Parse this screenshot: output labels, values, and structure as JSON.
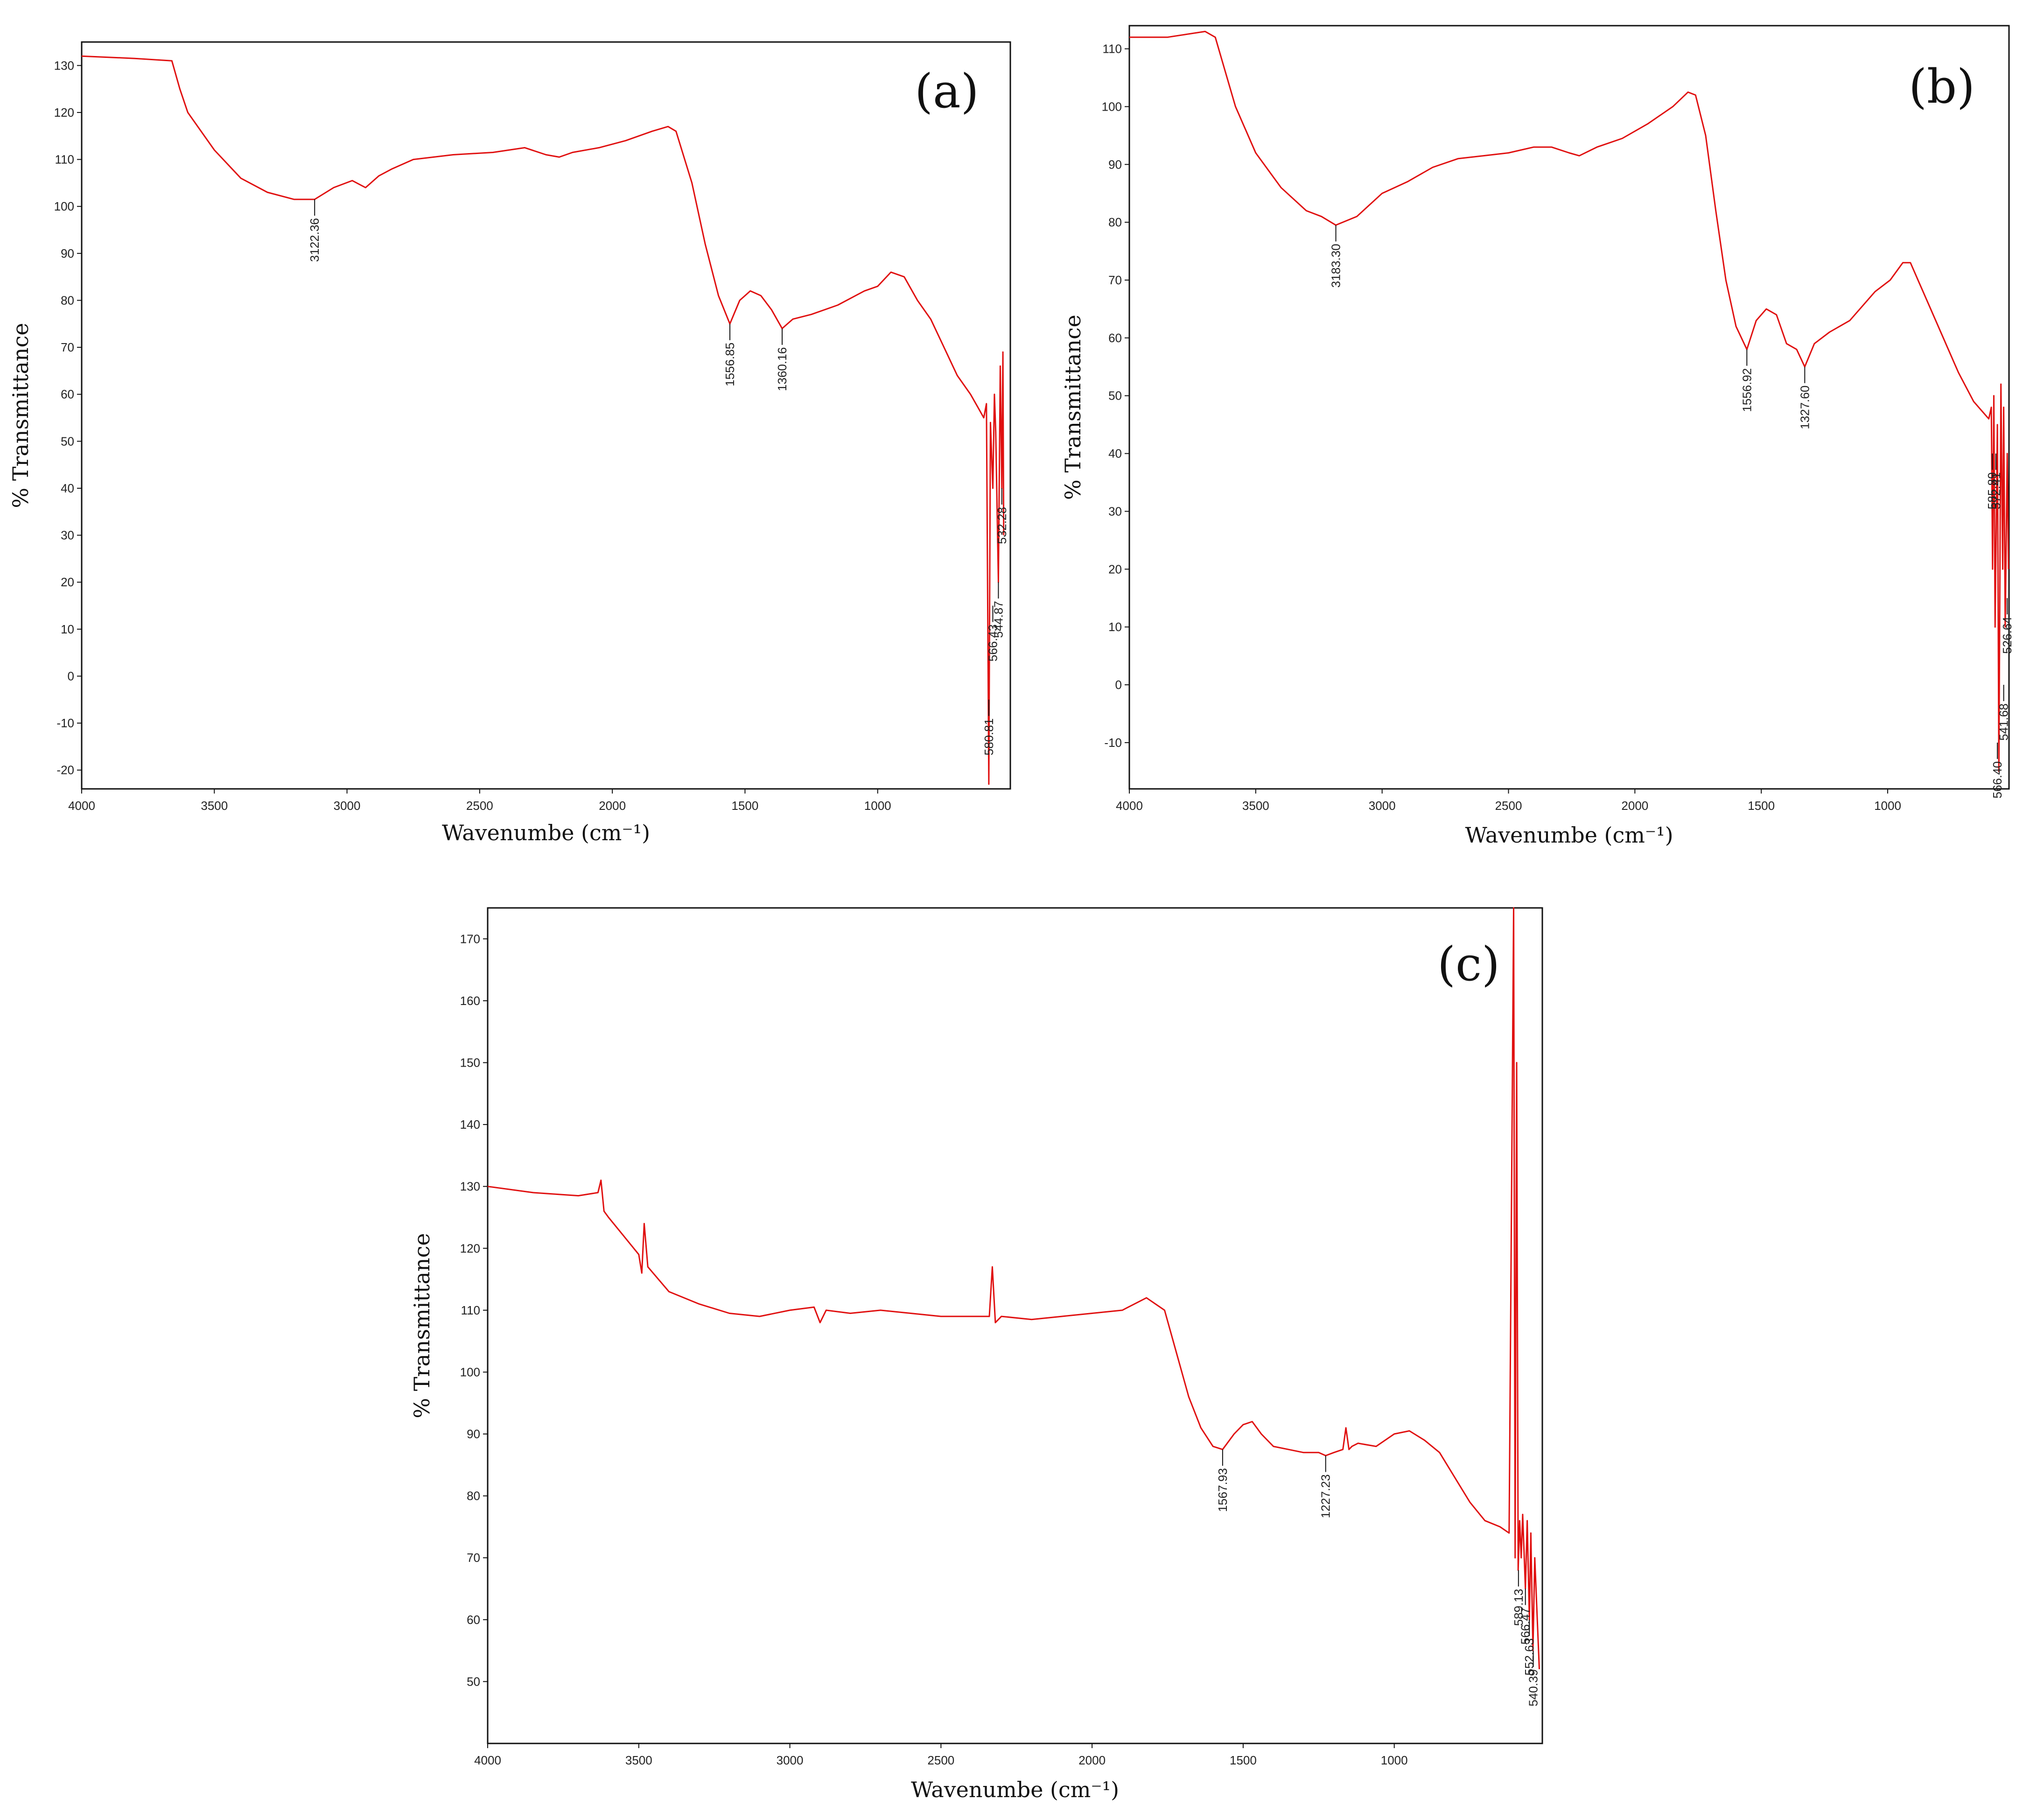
{
  "chart_data": [
    {
      "type": "line",
      "panel_label": "(a)",
      "xlabel": "Wavenumbe (cm⁻¹)",
      "ylabel": "% Transmittance",
      "xlim": [
        4000,
        500
      ],
      "ylim": [
        -24,
        135
      ],
      "x_ticks": [
        "4000",
        "3500",
        "3000",
        "2500",
        "2000",
        "1500",
        "1000"
      ],
      "x_tick_values": [
        4000,
        3500,
        3000,
        2500,
        2000,
        1500,
        1000
      ],
      "y_ticks": [
        "-20",
        "-10",
        "0",
        "10",
        "20",
        "30",
        "40",
        "50",
        "60",
        "70",
        "80",
        "90",
        "100",
        "110",
        "120",
        "130"
      ],
      "y_tick_values": [
        -20,
        -10,
        0,
        10,
        20,
        30,
        40,
        50,
        60,
        70,
        80,
        90,
        100,
        110,
        120,
        130
      ],
      "line_color": "#e01010",
      "series": [
        {
          "x": [
            4000,
            3800,
            3660,
            3630,
            3600,
            3500,
            3400,
            3300,
            3200,
            3122,
            3050,
            2980,
            2930,
            2880,
            2830,
            2750,
            2600,
            2450,
            2330,
            2250,
            2200,
            2150,
            2050,
            1950,
            1850,
            1790,
            1760,
            1700,
            1650,
            1600,
            1557,
            1520,
            1480,
            1440,
            1400,
            1360,
            1320,
            1250,
            1150,
            1050,
            1000,
            950,
            900,
            850,
            800,
            750,
            700,
            650,
            620,
            600,
            590,
            581,
            575,
            566,
            560,
            555,
            545,
            538,
            532,
            528,
            525
          ],
          "y": [
            132,
            131.5,
            131,
            125,
            120,
            112,
            106,
            103,
            101.5,
            101.5,
            104,
            105.5,
            104,
            106.5,
            108,
            110,
            111,
            111.5,
            112.5,
            111,
            110.5,
            111.5,
            112.5,
            114,
            116,
            117,
            116,
            105,
            92,
            81,
            75,
            80,
            82,
            81,
            78,
            74,
            76,
            77,
            79,
            82,
            83,
            86,
            85,
            80,
            76,
            70,
            64,
            60,
            57,
            55,
            58,
            -23,
            54,
            40,
            60,
            52,
            20,
            66,
            40,
            69,
            30
          ]
        }
      ],
      "peaks": [
        {
          "label": "3122.36",
          "x": 3122,
          "y": 101.5
        },
        {
          "label": "1556.85",
          "x": 1557,
          "y": 75
        },
        {
          "label": "1360.16",
          "x": 1360,
          "y": 74
        },
        {
          "label": "580.81",
          "x": 581,
          "y": -5
        },
        {
          "label": "566.43",
          "x": 566,
          "y": 15
        },
        {
          "label": "544.87",
          "x": 545,
          "y": 20
        },
        {
          "label": "532.28",
          "x": 532,
          "y": 40
        }
      ]
    },
    {
      "type": "line",
      "panel_label": "(b)",
      "xlabel": "Wavenumbe (cm⁻¹)",
      "ylabel": "% Transmittance",
      "xlim": [
        4000,
        520
      ],
      "ylim": [
        -18,
        114
      ],
      "x_ticks": [
        "4000",
        "3500",
        "3000",
        "2500",
        "2000",
        "1500",
        "1000"
      ],
      "x_tick_values": [
        4000,
        3500,
        3000,
        2500,
        2000,
        1500,
        1000
      ],
      "y_ticks": [
        "-10",
        "0",
        "10",
        "20",
        "30",
        "40",
        "50",
        "60",
        "70",
        "80",
        "90",
        "100",
        "110"
      ],
      "y_tick_values": [
        -10,
        0,
        10,
        20,
        30,
        40,
        50,
        60,
        70,
        80,
        90,
        100,
        110
      ],
      "line_color": "#e01010",
      "series": [
        {
          "x": [
            4000,
            3850,
            3700,
            3660,
            3620,
            3580,
            3500,
            3400,
            3300,
            3240,
            3183,
            3100,
            3000,
            2900,
            2800,
            2700,
            2600,
            2500,
            2400,
            2330,
            2260,
            2220,
            2150,
            2050,
            1950,
            1850,
            1790,
            1760,
            1720,
            1680,
            1640,
            1600,
            1557,
            1520,
            1480,
            1440,
            1400,
            1360,
            1328,
            1290,
            1230,
            1150,
            1050,
            990,
            940,
            910,
            880,
            840,
            780,
            720,
            660,
            620,
            600,
            590,
            585,
            580,
            575,
            566,
            560,
            552,
            545,
            541,
            535,
            527,
            522
          ],
          "y": [
            112,
            112,
            113,
            112,
            106,
            100,
            92,
            86,
            82,
            81,
            79.5,
            81,
            85,
            87,
            89.5,
            91,
            91.5,
            92,
            93,
            93,
            92,
            91.5,
            93,
            94.5,
            97,
            100,
            102.5,
            102,
            95,
            82,
            70,
            62,
            58,
            63,
            65,
            64,
            59,
            58,
            55,
            59,
            61,
            63,
            68,
            70,
            73,
            73,
            70,
            66,
            60,
            54,
            49,
            47,
            46,
            48,
            20,
            50,
            10,
            45,
            -15,
            52,
            20,
            48,
            10,
            40,
            20
          ]
        }
      ],
      "peaks": [
        {
          "label": "3183.30",
          "x": 3183,
          "y": 79.5
        },
        {
          "label": "1556.92",
          "x": 1557,
          "y": 58
        },
        {
          "label": "1327.60",
          "x": 1328,
          "y": 55
        },
        {
          "label": "585.89",
          "x": 586,
          "y": 40
        },
        {
          "label": "572.41",
          "x": 572,
          "y": 40
        },
        {
          "label": "566.40",
          "x": 566,
          "y": -10
        },
        {
          "label": "541.68",
          "x": 541,
          "y": 0
        },
        {
          "label": "526.64",
          "x": 527,
          "y": 15
        }
      ]
    },
    {
      "type": "line",
      "panel_label": "(c)",
      "xlabel": "Wavenumbe (cm⁻¹)",
      "ylabel": "% Transmittance",
      "xlim": [
        4000,
        510
      ],
      "ylim": [
        40,
        175
      ],
      "x_ticks": [
        "4000",
        "3500",
        "3000",
        "2500",
        "2000",
        "1500",
        "1000"
      ],
      "x_tick_values": [
        4000,
        3500,
        3000,
        2500,
        2000,
        1500,
        1000
      ],
      "y_ticks": [
        "50",
        "60",
        "70",
        "80",
        "90",
        "100",
        "110",
        "120",
        "130",
        "140",
        "150",
        "160",
        "170"
      ],
      "y_tick_values": [
        50,
        60,
        70,
        80,
        90,
        100,
        110,
        120,
        130,
        140,
        150,
        160,
        170
      ],
      "line_color": "#e01010",
      "series": [
        {
          "x": [
            4000,
            3850,
            3700,
            3635,
            3625,
            3615,
            3600,
            3550,
            3500,
            3490,
            3482,
            3470,
            3400,
            3300,
            3200,
            3100,
            3000,
            2920,
            2900,
            2880,
            2800,
            2700,
            2600,
            2500,
            2400,
            2340,
            2330,
            2320,
            2300,
            2200,
            2100,
            2000,
            1900,
            1820,
            1790,
            1760,
            1720,
            1680,
            1640,
            1600,
            1568,
            1530,
            1500,
            1470,
            1440,
            1400,
            1350,
            1300,
            1250,
            1227,
            1200,
            1170,
            1160,
            1150,
            1140,
            1120,
            1060,
            1000,
            950,
            900,
            850,
            800,
            750,
            700,
            650,
            620,
            605,
            600,
            595,
            590,
            585,
            580,
            575,
            566,
            560,
            553,
            548,
            541,
            535,
            520
          ],
          "y": [
            130,
            129,
            128.5,
            129,
            131,
            126,
            125,
            122,
            119,
            116,
            124,
            117,
            113,
            111,
            109.5,
            109,
            110,
            110.5,
            108,
            110,
            109.5,
            110,
            109.5,
            109,
            109,
            109,
            117,
            108,
            109,
            108.5,
            109,
            109.5,
            110,
            112,
            111,
            110,
            103,
            96,
            91,
            88,
            87.5,
            90,
            91.5,
            92,
            90,
            88,
            87.5,
            87,
            87,
            86.5,
            87,
            87.5,
            91,
            87.5,
            88,
            88.5,
            88,
            90,
            90.5,
            89,
            87,
            83,
            79,
            76,
            75,
            74,
            175,
            70,
            150,
            68,
            76,
            70,
            77,
            65,
            76,
            60,
            74,
            55,
            70,
            52
          ]
        }
      ],
      "peaks": [
        {
          "label": "1567.93",
          "x": 1568,
          "y": 87.5
        },
        {
          "label": "1227.23",
          "x": 1227,
          "y": 86.5
        },
        {
          "label": "589.13",
          "x": 589,
          "y": 68
        },
        {
          "label": "566.47",
          "x": 566,
          "y": 65
        },
        {
          "label": "552.63",
          "x": 553,
          "y": 60
        },
        {
          "label": "540.39",
          "x": 540,
          "y": 55
        }
      ]
    }
  ]
}
